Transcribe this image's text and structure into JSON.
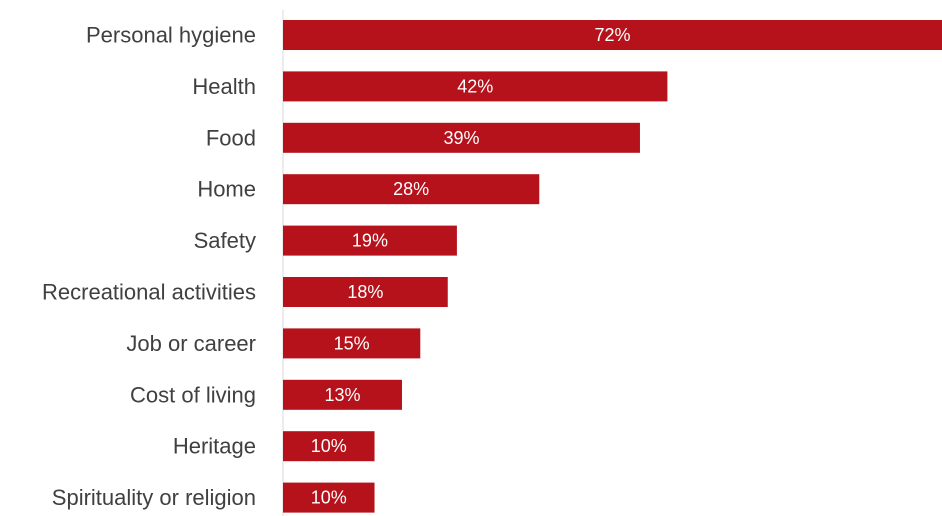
{
  "chart_data": {
    "type": "bar",
    "orientation": "horizontal",
    "categories": [
      "Personal hygiene",
      "Health",
      "Food",
      "Home",
      "Safety",
      "Recreational activities",
      "Job or career",
      "Cost of living",
      "Heritage",
      "Spirituality or religion"
    ],
    "values": [
      72,
      42,
      39,
      28,
      19,
      18,
      15,
      13,
      10,
      10
    ],
    "data_labels": [
      "72%",
      "42%",
      "39%",
      "28%",
      "19%",
      "18%",
      "15%",
      "13%",
      "10%",
      "10%"
    ],
    "title": "",
    "xlabel": "",
    "ylabel": "",
    "xlim": [
      0,
      72
    ],
    "grid": false,
    "legend": "none",
    "colors": {
      "bar": "#b5121b",
      "bar_label": "#ffffff",
      "category_label": "#404040",
      "axis": "#d9d9d9"
    }
  }
}
